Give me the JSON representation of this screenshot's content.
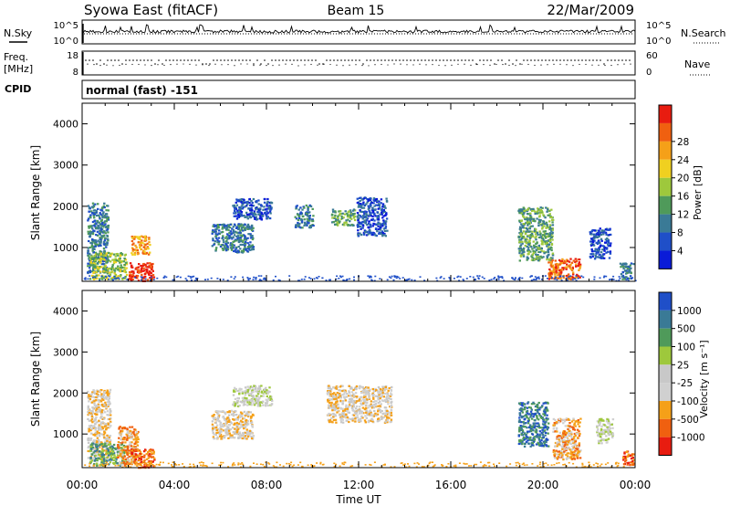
{
  "header": {
    "station": "Syowa East (fitACF)",
    "beam": "Beam 15",
    "date": "22/Mar/2009"
  },
  "summary": {
    "nsky_label": "N.Sky",
    "nsky_ticks": [
      "10^5",
      "10^0"
    ],
    "nsearch_label": "N.Search",
    "nsearch_ticks": [
      "10^5",
      "10^0"
    ],
    "freq_label_1": "Freq.",
    "freq_label_2": "[MHz]",
    "freq_ticks": [
      "18",
      "8"
    ],
    "nave_label": "Nave",
    "nave_ticks": [
      "60",
      "0"
    ],
    "cpid_label": "CPID",
    "cpid_value": "normal (fast) -151"
  },
  "colors": {
    "power": [
      "#0a1bd8",
      "#1f4fc8",
      "#3a7a96",
      "#4f9a5a",
      "#9ec83c",
      "#f0d020",
      "#f5a018",
      "#f06010",
      "#e81c10"
    ],
    "velocity": [
      "#e81c10",
      "#f06010",
      "#f5a018",
      "#d0d0d0",
      "#c8c8c8",
      "#9ec83c",
      "#4f9a5a",
      "#3a7a96",
      "#1f4fc8"
    ],
    "ground_scatter": "#b4b4b4"
  },
  "chart_data": [
    {
      "type": "heatmap",
      "name": "power",
      "ylabel": "Slant Range [km]",
      "xlabel": "",
      "x_ticks": [
        "00:00",
        "04:00",
        "08:00",
        "12:00",
        "16:00",
        "20:00",
        "00:00"
      ],
      "y_ticks": [
        "1000",
        "2000",
        "3000",
        "4000"
      ],
      "ylim": [
        180,
        4500
      ],
      "xlim_hours": [
        0,
        24
      ],
      "colorbar_label": "Power [dB]",
      "colorbar_ticks": [
        "4",
        "8",
        "12",
        "16",
        "20",
        "24",
        "28"
      ],
      "regions": [
        {
          "t0": 0.2,
          "t1": 1.1,
          "r0": 400,
          "r1": 2100,
          "level": 2
        },
        {
          "t0": 0.3,
          "t1": 1.9,
          "r0": 250,
          "r1": 900,
          "level": 4
        },
        {
          "t0": 2.0,
          "t1": 3.1,
          "r0": 200,
          "r1": 650,
          "level": 8
        },
        {
          "t0": 2.1,
          "t1": 2.9,
          "r0": 850,
          "r1": 1300,
          "level": 6
        },
        {
          "t0": 5.6,
          "t1": 7.4,
          "r0": 900,
          "r1": 1600,
          "level": 2
        },
        {
          "t0": 6.5,
          "t1": 8.2,
          "r0": 1700,
          "r1": 2200,
          "level": 1
        },
        {
          "t0": 9.2,
          "t1": 10.0,
          "r0": 1500,
          "r1": 2050,
          "level": 2
        },
        {
          "t0": 10.8,
          "t1": 11.8,
          "r0": 1550,
          "r1": 1950,
          "level": 3
        },
        {
          "t0": 11.9,
          "t1": 13.2,
          "r0": 1300,
          "r1": 2250,
          "level": 1
        },
        {
          "t0": 18.9,
          "t1": 20.4,
          "r0": 700,
          "r1": 2000,
          "level": 3
        },
        {
          "t0": 20.2,
          "t1": 21.6,
          "r0": 250,
          "r1": 750,
          "level": 7
        },
        {
          "t0": 22.0,
          "t1": 22.9,
          "r0": 750,
          "r1": 1500,
          "level": 1
        },
        {
          "t0": 23.3,
          "t1": 23.9,
          "r0": 250,
          "r1": 650,
          "level": 2
        }
      ]
    },
    {
      "type": "heatmap",
      "name": "velocity",
      "ylabel": "Slant Range [km]",
      "xlabel": "Time UT",
      "x_ticks": [
        "00:00",
        "04:00",
        "08:00",
        "12:00",
        "16:00",
        "20:00",
        "00:00"
      ],
      "y_ticks": [
        "1000",
        "2000",
        "3000",
        "4000"
      ],
      "ylim": [
        180,
        4500
      ],
      "xlim_hours": [
        0,
        24
      ],
      "colorbar_label": "Velocity [m s⁻¹]",
      "colorbar_ticks": [
        "1000",
        "500",
        "100",
        "25",
        "-25",
        "-100",
        "-500",
        "-1000"
      ],
      "regions": [
        {
          "t0": 0.2,
          "t1": 1.2,
          "r0": 400,
          "r1": 2100,
          "level": 3
        },
        {
          "t0": 0.3,
          "t1": 1.9,
          "r0": 250,
          "r1": 800,
          "level": 6
        },
        {
          "t0": 1.5,
          "t1": 2.4,
          "r0": 250,
          "r1": 1200,
          "level": 2
        },
        {
          "t0": 2.1,
          "t1": 3.1,
          "r0": 200,
          "r1": 650,
          "level": 1
        },
        {
          "t0": 5.6,
          "t1": 7.4,
          "r0": 900,
          "r1": 1600,
          "level": 3
        },
        {
          "t0": 6.5,
          "t1": 8.2,
          "r0": 1700,
          "r1": 2200,
          "level": 4
        },
        {
          "t0": 10.6,
          "t1": 13.4,
          "r0": 1300,
          "r1": 2200,
          "level": 3
        },
        {
          "t0": 18.9,
          "t1": 20.2,
          "r0": 700,
          "r1": 1800,
          "level": 7
        },
        {
          "t0": 20.4,
          "t1": 21.6,
          "r0": 400,
          "r1": 1400,
          "level": 2
        },
        {
          "t0": 22.3,
          "t1": 23.0,
          "r0": 800,
          "r1": 1400,
          "level": 4
        },
        {
          "t0": 23.4,
          "t1": 23.9,
          "r0": 250,
          "r1": 600,
          "level": 1
        }
      ]
    }
  ]
}
